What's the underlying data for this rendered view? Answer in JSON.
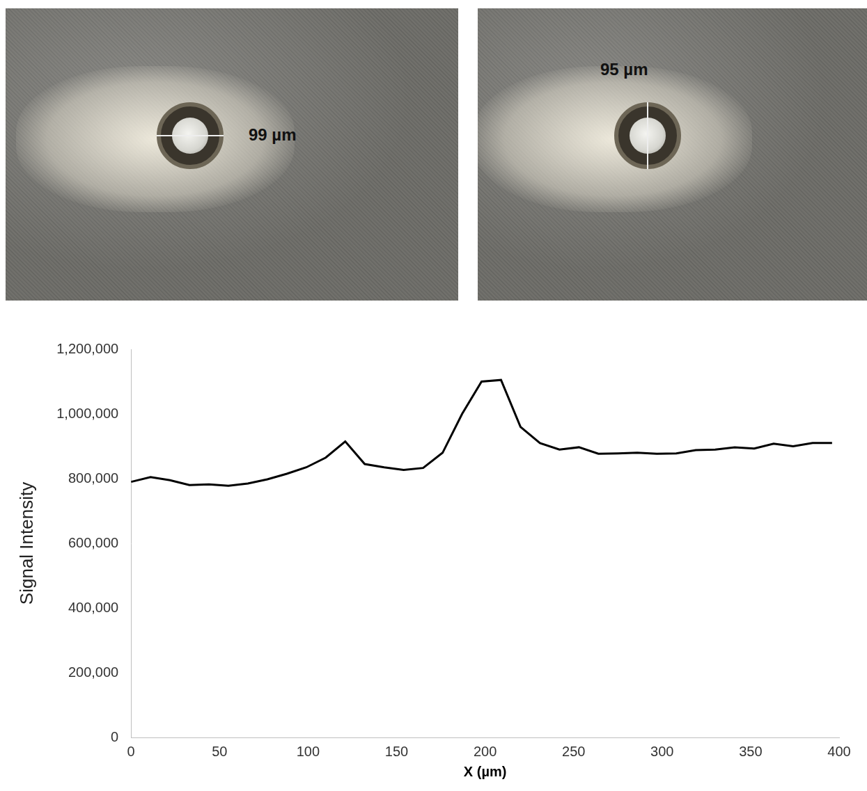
{
  "chart_data": {
    "type": "line",
    "xlabel": "X (µm)",
    "ylabel": "Signal Intensity",
    "x": [
      0,
      11,
      22,
      33,
      44,
      55,
      66,
      77,
      88,
      99,
      110,
      121,
      132,
      143,
      154,
      165,
      176,
      187,
      198,
      209,
      220,
      231,
      242,
      253,
      264,
      275,
      286,
      297,
      308,
      319,
      330,
      341,
      352,
      363,
      374,
      385,
      396
    ],
    "values": [
      790000,
      805000,
      795000,
      780000,
      782000,
      778000,
      785000,
      798000,
      815000,
      835000,
      865000,
      915000,
      845000,
      835000,
      827000,
      833000,
      880000,
      1000000,
      1100000,
      1105000,
      960000,
      910000,
      890000,
      897000,
      877000,
      878000,
      880000,
      877000,
      878000,
      888000,
      890000,
      897000,
      893000,
      908000,
      900000,
      910000,
      910000
    ],
    "color": "#000000",
    "xlim": [
      0,
      400
    ],
    "xticks": [
      0,
      50,
      100,
      150,
      200,
      250,
      300,
      350,
      400
    ],
    "ylim": [
      0,
      1200000
    ],
    "yticks": [
      0,
      {
        "value": 200000,
        "label": "200,000"
      },
      {
        "value": 400000,
        "label": "400,000"
      },
      {
        "value": 600000,
        "label": "600,000"
      },
      {
        "value": 800000,
        "label": "800,000"
      },
      {
        "value": 1000000,
        "label": "1,000,000"
      },
      {
        "value": 1200000,
        "label": "1,200,000"
      }
    ],
    "grid": false
  },
  "images": [
    {
      "measurement": "99 µm"
    },
    {
      "measurement": "95 µm"
    }
  ]
}
